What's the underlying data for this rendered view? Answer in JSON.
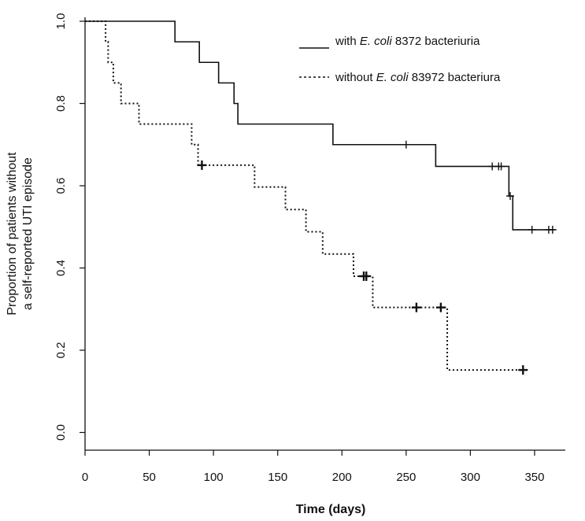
{
  "chart_data": {
    "type": "line",
    "subtype": "kaplan-meier-step",
    "title": "",
    "xlabel": "Time (days)",
    "ylabel_line1": "Proportion of patients without",
    "ylabel_line2": "a self-reported UTI episode",
    "xlim": [
      0,
      370
    ],
    "ylim": [
      0,
      1.0
    ],
    "xticks": [
      0,
      50,
      100,
      150,
      200,
      250,
      300,
      350
    ],
    "yticks": [
      0.0,
      0.2,
      0.4,
      0.6,
      0.8,
      1.0
    ],
    "xtick_labels": [
      "0",
      "50",
      "100",
      "150",
      "200",
      "250",
      "300",
      "350"
    ],
    "ytick_labels": [
      "0.0",
      "0.2",
      "0.4",
      "0.6",
      "0.8",
      "1.0"
    ],
    "grid": false,
    "legend_position": "top-right",
    "series": [
      {
        "name_prefix": "with ",
        "name_italic": "E. coli",
        "name_suffix": " 8372 bacteriuria",
        "style": "solid",
        "color": "#111111",
        "steps": [
          [
            0,
            1.0
          ],
          [
            70,
            0.95
          ],
          [
            89,
            0.9
          ],
          [
            104,
            0.85
          ],
          [
            116,
            0.8
          ],
          [
            119,
            0.75
          ],
          [
            193,
            0.7
          ],
          [
            273,
            0.647
          ],
          [
            330,
            0.575
          ],
          [
            333,
            0.493
          ]
        ],
        "end_x": 366,
        "censored": [
          [
            250,
            0.7
          ],
          [
            317,
            0.647
          ],
          [
            322,
            0.647
          ],
          [
            324,
            0.647
          ],
          [
            331,
            0.575
          ],
          [
            348,
            0.493
          ],
          [
            361,
            0.493
          ],
          [
            364,
            0.493
          ]
        ]
      },
      {
        "name_prefix": "without ",
        "name_italic": "E. coli",
        "name_suffix": " 83972 bacteriura",
        "style": "dotted",
        "color": "#111111",
        "steps": [
          [
            0,
            1.0
          ],
          [
            16,
            0.95
          ],
          [
            18,
            0.9
          ],
          [
            22,
            0.85
          ],
          [
            28,
            0.8
          ],
          [
            42,
            0.75
          ],
          [
            83,
            0.7
          ],
          [
            88,
            0.65
          ],
          [
            132,
            0.597
          ],
          [
            156,
            0.542
          ],
          [
            172,
            0.488
          ],
          [
            185,
            0.434
          ],
          [
            209,
            0.38
          ],
          [
            224,
            0.304
          ],
          [
            282,
            0.152
          ]
        ],
        "end_x": 342,
        "censored": [
          [
            91,
            0.65
          ],
          [
            217,
            0.38
          ],
          [
            219,
            0.38
          ],
          [
            258,
            0.304
          ],
          [
            277,
            0.304
          ],
          [
            341,
            0.152
          ]
        ]
      }
    ]
  }
}
